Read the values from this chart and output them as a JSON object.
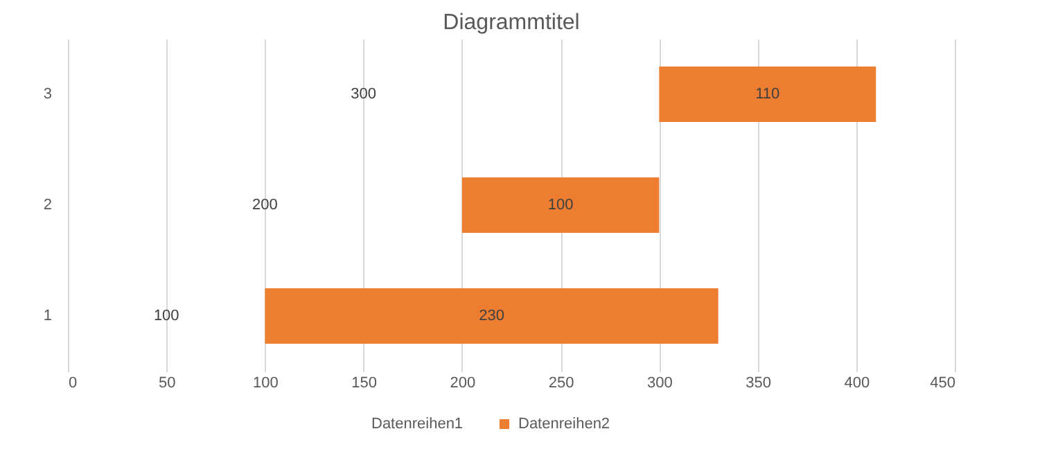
{
  "chart_data": {
    "type": "bar",
    "title": "Diagrammtitel",
    "orientation": "horizontal",
    "categories": [
      "3",
      "2",
      "1"
    ],
    "series": [
      {
        "name": "Datenreihen2",
        "color": "#ed7d31",
        "values": [
          110,
          100,
          230
        ],
        "base": [
          300,
          200,
          100
        ]
      }
    ],
    "annotations": [
      "Datenreihen1",
      "300",
      "200",
      "100"
    ],
    "xlim": [
      0,
      450
    ],
    "xticks": [
      0,
      50,
      100,
      150,
      200,
      250,
      300,
      350,
      400,
      450
    ],
    "grid": "x",
    "legend": "bottom",
    "data_labels": true
  }
}
